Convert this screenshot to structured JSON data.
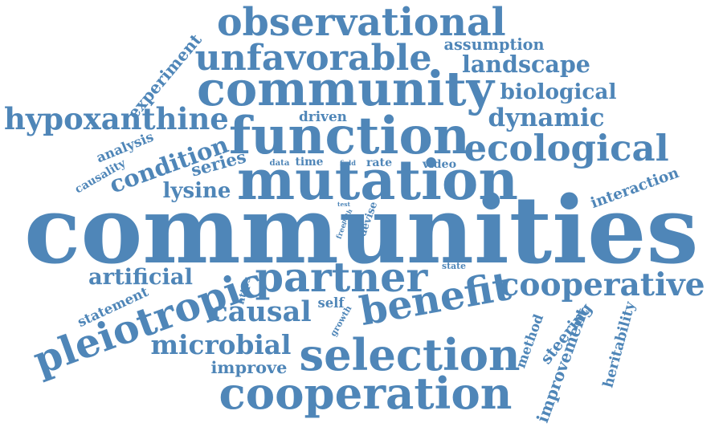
{
  "colors": {
    "word": "#4f86b8",
    "background": "#ffffff"
  },
  "words": [
    "communities",
    "mutation",
    "community",
    "function",
    "observational",
    "selection",
    "cooperation",
    "pleiotropic",
    "partner",
    "cooperative",
    "benefit",
    "unfavorable",
    "ecological",
    "hypoxanthine",
    "condition",
    "microbial",
    "causal",
    "artificial",
    "dynamic",
    "landscape",
    "biological",
    "assumption",
    "experiment",
    "lysine",
    "improvement",
    "improve",
    "steering",
    "heritability",
    "interaction",
    "analysis",
    "series",
    "causality",
    "statement",
    "driven",
    "method",
    "video",
    "rate",
    "time",
    "data",
    "field",
    "self",
    "growth",
    "https",
    "devise",
    "path",
    "free",
    "test",
    "state"
  ]
}
